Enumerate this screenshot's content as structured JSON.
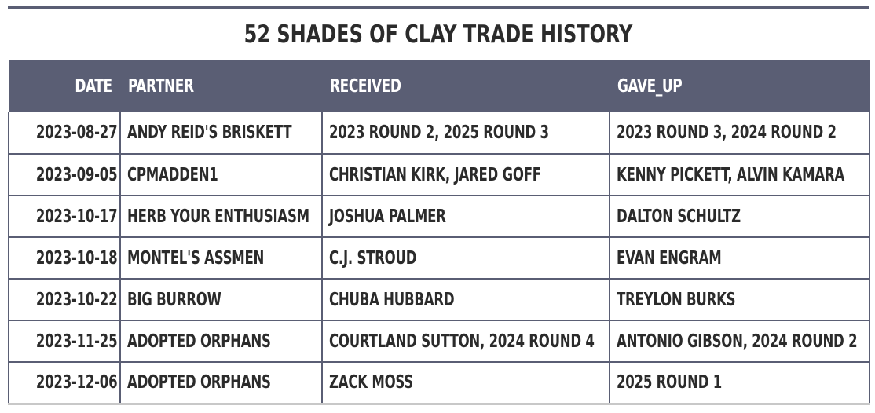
{
  "title": "52 SHADES OF CLAY TRADE HISTORY",
  "columns": {
    "date": "DATE",
    "partner": "PARTNER",
    "received": "RECEIVED",
    "gave_up": "GAVE_UP"
  },
  "rows": [
    {
      "date": "2023-08-27",
      "partner": "ANDY REID'S BRISKETT",
      "received": "2023 ROUND 2, 2025 ROUND 3",
      "gave_up": "2023 ROUND 3, 2024 ROUND 2"
    },
    {
      "date": "2023-09-05",
      "partner": "CPMADDEN1",
      "received": "CHRISTIAN KIRK, JARED GOFF",
      "gave_up": "KENNY PICKETT, ALVIN KAMARA"
    },
    {
      "date": "2023-10-17",
      "partner": "HERB YOUR ENTHUSIASM",
      "received": "JOSHUA PALMER",
      "gave_up": "DALTON SCHULTZ"
    },
    {
      "date": "2023-10-18",
      "partner": "MONTEL'S ASSMEN",
      "received": "C.J. STROUD",
      "gave_up": "EVAN ENGRAM"
    },
    {
      "date": "2023-10-22",
      "partner": "BIG BURROW",
      "received": "CHUBA HUBBARD",
      "gave_up": "TREYLON BURKS"
    },
    {
      "date": "2023-11-25",
      "partner": "ADOPTED ORPHANS",
      "received": "COURTLAND SUTTON, 2024 ROUND 4",
      "gave_up": "ANTONIO GIBSON, 2024 ROUND 2"
    },
    {
      "date": "2023-12-06",
      "partner": "ADOPTED ORPHANS",
      "received": "ZACK MOSS",
      "gave_up": "2025 ROUND 1"
    }
  ],
  "colors": {
    "header_bg": "#5a5e74",
    "header_text": "#ffffff",
    "body_text": "#2b2b2b",
    "grid": "#5a5e74"
  }
}
